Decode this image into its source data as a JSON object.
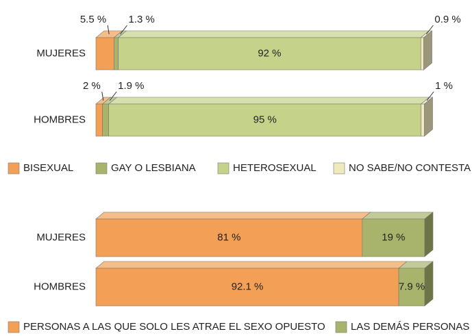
{
  "chart_data": [
    {
      "type": "bar",
      "orientation": "horizontal",
      "stacked": true,
      "categories": [
        "MUJERES",
        "HOMBRES"
      ],
      "series": [
        {
          "name": "BISEXUAL",
          "color": "#f3a056",
          "values": [
            5.5,
            2
          ],
          "value_labels": [
            "5.5 %",
            "2 %"
          ]
        },
        {
          "name": "GAY O LESBIANA",
          "color": "#a8b36c",
          "values": [
            1.3,
            1.9
          ],
          "value_labels": [
            "1.3 %",
            "1.9 %"
          ]
        },
        {
          "name": "HETEROSEXUAL",
          "color": "#c5d28a",
          "values": [
            92,
            95
          ],
          "value_labels": [
            "92 %",
            "95 %"
          ]
        },
        {
          "name": "NO SABE/NO CONTESTA",
          "color": "#efe9bb",
          "values": [
            0.9,
            1
          ],
          "value_labels": [
            "0.9 %",
            "1 %"
          ]
        }
      ]
    },
    {
      "type": "bar",
      "orientation": "horizontal",
      "stacked": true,
      "categories": [
        "MUJERES",
        "HOMBRES"
      ],
      "series": [
        {
          "name": "PERSONAS A LAS QUE SOLO LES ATRAE EL SEXO OPUESTO",
          "color": "#f3a056",
          "values": [
            81,
            92.1
          ],
          "value_labels": [
            "81 %",
            "92.1 %"
          ]
        },
        {
          "name": "LAS DEMÁS PERSONAS",
          "color": "#a8b36c",
          "values": [
            19,
            7.9
          ],
          "value_labels": [
            "19 %",
            "7.9 %"
          ]
        }
      ]
    }
  ]
}
